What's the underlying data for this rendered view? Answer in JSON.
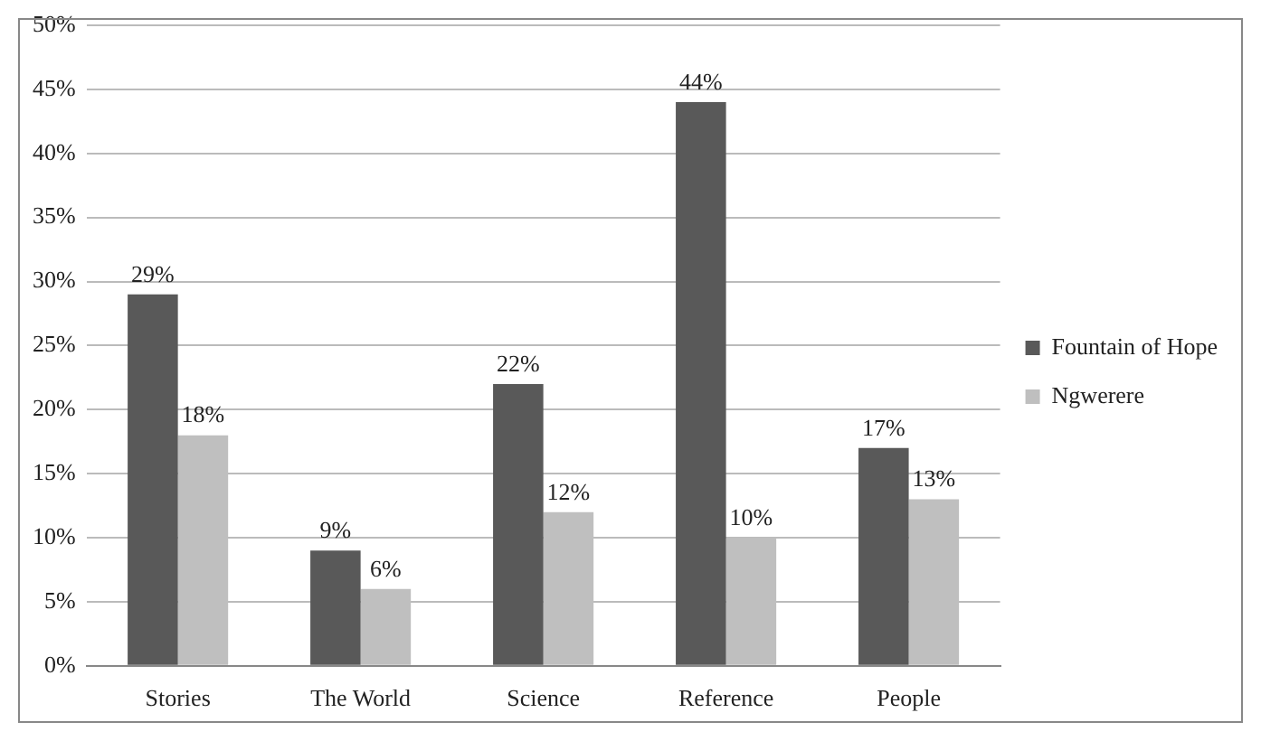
{
  "chart_data": {
    "type": "bar",
    "categories": [
      "Stories",
      "The World",
      "Science",
      "Reference",
      "People"
    ],
    "series": [
      {
        "name": "Fountain of Hope",
        "color": "#595959",
        "values": [
          29,
          9,
          22,
          44,
          17
        ]
      },
      {
        "name": "Ngwerere",
        "color": "#bfbfbf",
        "values": [
          18,
          6,
          12,
          10,
          13
        ]
      }
    ],
    "ylim": [
      0,
      50
    ],
    "yticks": [
      {
        "value": 0,
        "label": "0%"
      },
      {
        "value": 5,
        "label": "5%"
      },
      {
        "value": 10,
        "label": "10%"
      },
      {
        "value": 15,
        "label": "15%"
      },
      {
        "value": 20,
        "label": "20%"
      },
      {
        "value": 25,
        "label": "25%"
      },
      {
        "value": 30,
        "label": "30%"
      },
      {
        "value": 35,
        "label": "35%"
      },
      {
        "value": 40,
        "label": "40%"
      },
      {
        "value": 45,
        "label": "45%"
      },
      {
        "value": 50,
        "label": "50%"
      }
    ],
    "value_labels": [
      [
        "29%",
        "9%",
        "22%",
        "44%",
        "17%"
      ],
      [
        "18%",
        "6%",
        "12%",
        "10%",
        "13%"
      ]
    ],
    "grid": "y",
    "legend": "right"
  }
}
